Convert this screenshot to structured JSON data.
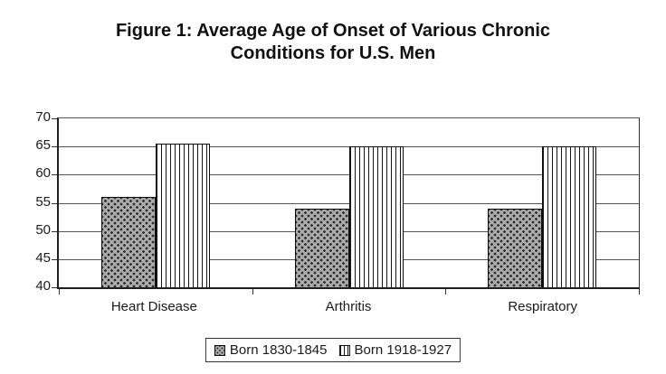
{
  "chart_data": {
    "type": "bar",
    "title": "Figure 1: Average Age of Onset of Various Chronic Conditions for U.S. Men",
    "title_lines": [
      "Figure 1: Average Age of Onset of Various Chronic",
      "Conditions for U.S. Men"
    ],
    "categories": [
      "Heart Disease",
      "Arthritis",
      "Respiratory"
    ],
    "series": [
      {
        "name": "Born 1830-1845",
        "pattern": "gray-dots",
        "values": [
          56,
          54,
          54
        ]
      },
      {
        "name": "Born 1918-1927",
        "pattern": "vertical-stripes",
        "values": [
          65.5,
          65,
          65
        ]
      }
    ],
    "ylim": [
      40,
      70
    ],
    "yticks": [
      40,
      45,
      50,
      55,
      60,
      65,
      70
    ],
    "grid": true,
    "legend_position": "bottom",
    "colors": {
      "dots_bg": "#ababab",
      "dots_fg": "#2e2e2e",
      "stripe_fg": "#161616",
      "stripe_bg": "#ffffff",
      "axis": "#1f1f1f",
      "gridline": "#555555",
      "text": "#161616",
      "background": "#fefefe"
    }
  }
}
